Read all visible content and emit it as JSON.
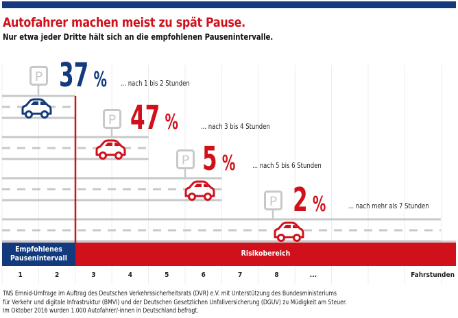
{
  "title": "Autofahrer machen meist zu spät Pause.",
  "subtitle": "Nur etwa jeder Dritte hält sich an die empfohlenen Pausenintervalle.",
  "colors": {
    "blue": "#123a7c",
    "red": "#d0111b",
    "grey": "#c8c8c8"
  },
  "icons": {
    "parking": "parking-sign-icon",
    "car": "car-icon"
  },
  "chart_data": {
    "type": "bar",
    "title": "Autofahrer machen meist zu spät Pause.",
    "xlabel": "Fahrstunden",
    "x_ticks": [
      "1",
      "2",
      "3",
      "4",
      "5",
      "6",
      "7",
      "8",
      "..."
    ],
    "categories": [
      "... nach 1 bis 2 Stunden",
      "... nach 3 bis 4 Stunden",
      "... nach 5 bis 6 Stunden",
      "... nach mehr als 7 Stunden"
    ],
    "values": [
      37,
      47,
      5,
      2
    ],
    "value_suffix": "%",
    "pause_after_hours": [
      2,
      4,
      6,
      12
    ],
    "zones": [
      {
        "label": "Empfohlenes Pausenintervall",
        "from_hour": 0,
        "to_hour": 2,
        "color": "#123a7c"
      },
      {
        "label": "Risikobereich",
        "from_hour": 2,
        "to_hour": 12,
        "color": "#d0111b"
      }
    ],
    "rows": [
      {
        "value": "37",
        "unit": "%",
        "label": "... nach 1 bis 2 Stunden",
        "color": "#123a7c"
      },
      {
        "value": "47",
        "unit": "%",
        "label": "... nach 3 bis 4 Stunden",
        "color": "#d0111b"
      },
      {
        "value": "5",
        "unit": "%",
        "label": "... nach 5 bis 6 Stunden",
        "color": "#d0111b"
      },
      {
        "value": "2",
        "unit": "%",
        "label": "... nach mehr als 7 Stunden",
        "color": "#d0111b"
      }
    ]
  },
  "footer": [
    "TNS Emnid-Umfrage im Auftrag des Deutschen Verkehrssicherheitsrats (DVR) e.V. mit Unterstützung des Bundesministeriums",
    "für Verkehr und digitale Infrastruktur (BMVI) und der Deutschen Gesetzlichen Unfallversicherung (DGUV) zu Müdigkeit am Steuer.",
    "Im Oktober 2016 wurden 1.000 Autofahrer/-innen in Deutschland befragt."
  ]
}
